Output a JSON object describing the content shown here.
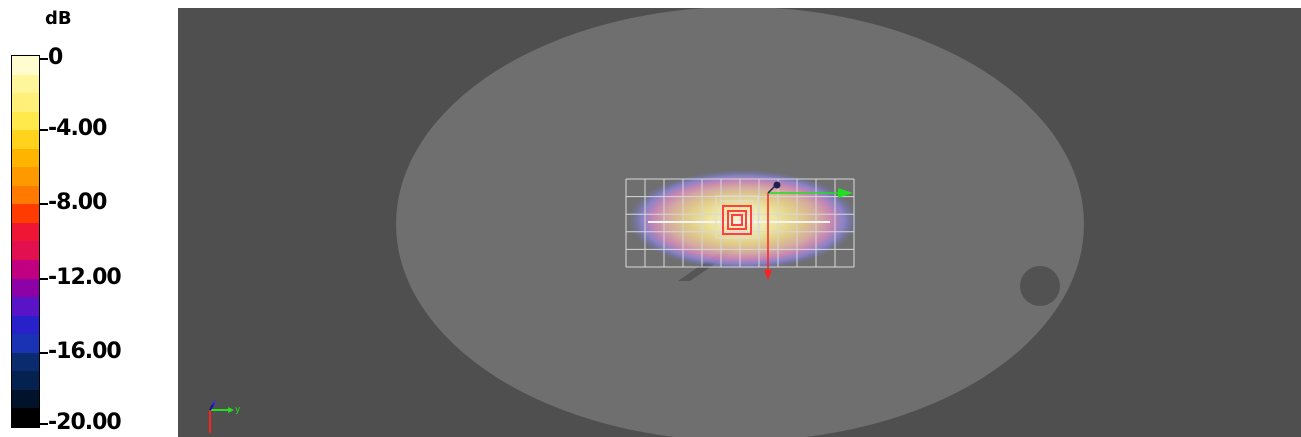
{
  "legend": {
    "unit": "dB",
    "ticks": [
      {
        "label": "0",
        "value": 0
      },
      {
        "label": "-4.00",
        "value": -4
      },
      {
        "label": "-8.00",
        "value": -8
      },
      {
        "label": "-12.00",
        "value": -12
      },
      {
        "label": "-16.00",
        "value": -16
      },
      {
        "label": "-20.00",
        "value": -20
      }
    ],
    "colors": [
      "#fffdd0",
      "#fff59a",
      "#fff079",
      "#ffe94b",
      "#ffd21c",
      "#ffb400",
      "#ff9900",
      "#ff7a00",
      "#ff3c00",
      "#ee1535",
      "#e2104f",
      "#c00080",
      "#8c00a6",
      "#5a14c8",
      "#2820c8",
      "#1a32b4",
      "#0a2c6e",
      "#05214f",
      "#01122b",
      "#000000"
    ]
  },
  "viewport": {
    "background": "#4f4f4f",
    "phantom_color": "#6f6f6f",
    "axes_triad": {
      "z": "z",
      "y": "y"
    }
  }
}
